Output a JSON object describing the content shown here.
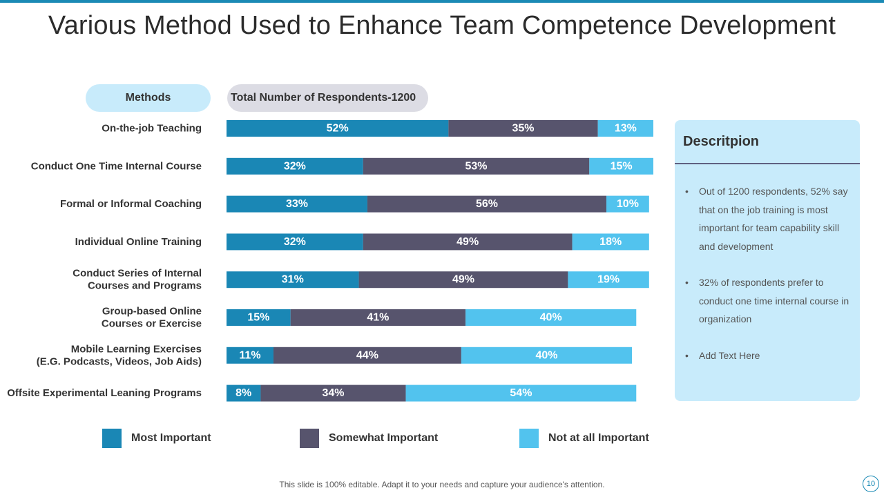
{
  "title": "Various Method Used to Enhance Team Competence Development",
  "methods_label": "Methods",
  "total_label": "Total Number of Respondents-1200",
  "colors": {
    "most": "#1a87b5",
    "somewhat": "#57546d",
    "not_at_all": "#52c3ee",
    "accent_line": "#1a8ab5"
  },
  "chart_data": {
    "type": "bar",
    "orientation": "horizontal",
    "stacked": true,
    "categories": [
      "On-the-job Teaching",
      "Conduct One Time Internal Course",
      "Formal or Informal Coaching",
      "Individual Online Training",
      "Conduct Series of Internal\nCourses and Programs",
      "Group-based Online\nCourses or Exercise",
      "Mobile Learning Exercises\n(E.G. Podcasts, Videos, Job Aids)",
      "Offsite Experimental Leaning Programs"
    ],
    "series": [
      {
        "name": "Most  Important",
        "values": [
          52,
          32,
          33,
          32,
          31,
          15,
          11,
          8
        ]
      },
      {
        "name": "Somewhat Important",
        "values": [
          35,
          53,
          56,
          49,
          49,
          41,
          44,
          34
        ]
      },
      {
        "name": "Not at all Important",
        "values": [
          13,
          15,
          10,
          18,
          19,
          40,
          40,
          54
        ]
      }
    ],
    "value_suffix": "%",
    "xlim": [
      0,
      100
    ],
    "legend": "bottom"
  },
  "legend": [
    {
      "label": "Most  Important"
    },
    {
      "label": "Somewhat Important"
    },
    {
      "label": "Not at all Important"
    }
  ],
  "description": {
    "title": "Descritpion",
    "bullet_char": "•",
    "items": [
      "Out of 1200 respondents, 52% say that on the job training is most important for team capability skill and development",
      "32% of respondents prefer to conduct one time internal course in organization",
      "Add Text Here"
    ]
  },
  "footer": "This slide is 100% editable. Adapt it to your needs and capture your audience's attention.",
  "page_number": "10"
}
